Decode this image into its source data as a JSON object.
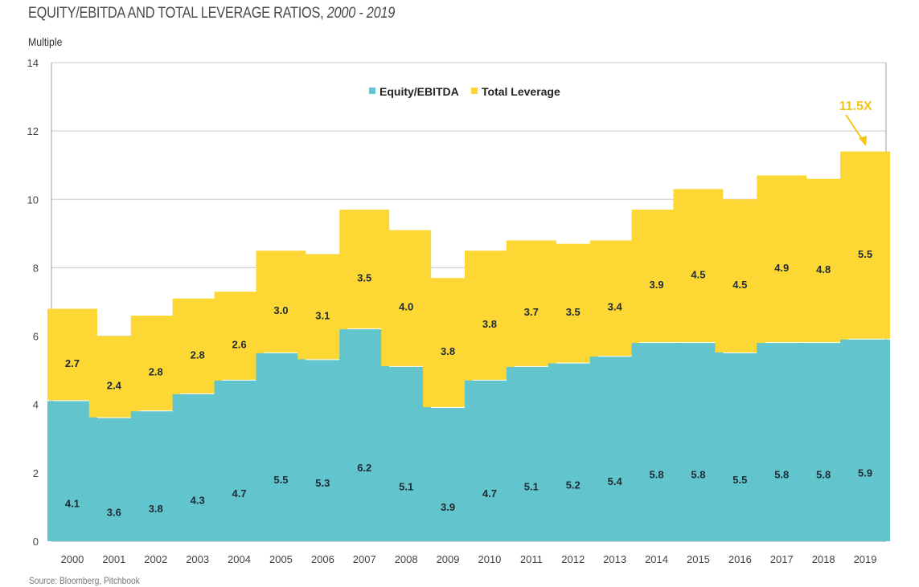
{
  "header": {
    "title_main": "EQUITY/EBITDA AND TOTAL LEVERAGE RATIOS, ",
    "title_years": "2000 - 2019",
    "y_axis_unit": "Multiple"
  },
  "footer": {
    "source": "Source: Bloomberg, Pitchbook"
  },
  "colors": {
    "equity": "#62C4CC",
    "leverage": "#FDD835",
    "annotation": "#F5C518",
    "grid": "#d3d3d3",
    "axis": "#bdbdbd"
  },
  "chart_data": {
    "type": "bar",
    "stacked": true,
    "title": "EQUITY/EBITDA AND TOTAL LEVERAGE RATIOS, 2000 - 2019",
    "xlabel": "",
    "ylabel": "Multiple",
    "ylim": [
      0,
      14
    ],
    "yticks": [
      0,
      2,
      4,
      6,
      8,
      10,
      12,
      14
    ],
    "grid": true,
    "legend_position": "top-center",
    "categories": [
      "2000",
      "2001",
      "2002",
      "2003",
      "2004",
      "2005",
      "2006",
      "2007",
      "2008",
      "2009",
      "2010",
      "2011",
      "2012",
      "2013",
      "2014",
      "2015",
      "2016",
      "2017",
      "2018",
      "2019"
    ],
    "series": [
      {
        "name": "Equity/EBITDA",
        "values": [
          4.1,
          3.6,
          3.8,
          4.3,
          4.7,
          5.5,
          5.3,
          6.2,
          5.1,
          3.9,
          4.7,
          5.1,
          5.2,
          5.4,
          5.8,
          5.8,
          5.5,
          5.8,
          5.8,
          5.9
        ]
      },
      {
        "name": "Total Leverage",
        "values": [
          2.7,
          2.4,
          2.8,
          2.8,
          2.6,
          3.0,
          3.1,
          3.5,
          4.0,
          3.8,
          3.8,
          3.7,
          3.5,
          3.4,
          3.9,
          4.5,
          4.5,
          4.9,
          4.8,
          5.5
        ]
      }
    ],
    "annotations": [
      {
        "text": "11.5X",
        "category": "2019",
        "arrow": true
      }
    ],
    "source": "Source: Bloomberg, Pitchbook"
  }
}
